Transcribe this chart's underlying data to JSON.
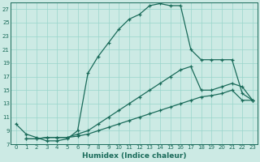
{
  "xlabel": "Humidex (Indice chaleur)",
  "background_color": "#cceae4",
  "grid_color": "#99d5cb",
  "line_color": "#1a6b5a",
  "xlim": [
    -0.5,
    23.5
  ],
  "ylim": [
    7,
    28
  ],
  "yticks": [
    7,
    9,
    11,
    13,
    15,
    17,
    19,
    21,
    23,
    25,
    27
  ],
  "xticks": [
    0,
    1,
    2,
    3,
    4,
    5,
    6,
    7,
    8,
    9,
    10,
    11,
    12,
    13,
    14,
    15,
    16,
    17,
    18,
    19,
    20,
    21,
    22,
    23
  ],
  "series1_x": [
    0,
    1,
    2,
    3,
    4,
    5,
    6,
    7,
    8,
    9,
    10,
    11,
    12,
    13,
    14,
    15,
    16,
    17,
    18,
    19,
    20,
    21,
    22,
    23
  ],
  "series1_y": [
    10.0,
    8.5,
    8.0,
    7.5,
    7.5,
    7.8,
    9.0,
    17.5,
    20.0,
    22.0,
    24.0,
    25.5,
    26.2,
    27.5,
    27.8,
    27.5,
    27.5,
    21.0,
    19.5,
    19.5,
    19.5,
    19.5,
    14.5,
    13.5
  ],
  "series2_x": [
    1,
    2,
    3,
    4,
    5,
    6,
    7,
    8,
    9,
    10,
    11,
    12,
    13,
    14,
    15,
    16,
    17,
    18,
    19,
    20,
    21,
    22,
    23
  ],
  "series2_y": [
    7.8,
    7.8,
    8.0,
    8.0,
    8.0,
    8.2,
    8.5,
    9.0,
    9.5,
    10.0,
    10.5,
    11.0,
    11.5,
    12.0,
    12.5,
    13.0,
    13.5,
    14.0,
    14.2,
    14.5,
    15.0,
    13.5,
    13.5
  ],
  "series3_x": [
    1,
    2,
    3,
    4,
    5,
    6,
    7,
    8,
    9,
    10,
    11,
    12,
    13,
    14,
    15,
    16,
    17,
    18,
    19,
    20,
    21,
    22,
    23
  ],
  "series3_y": [
    7.8,
    7.8,
    8.0,
    8.0,
    8.0,
    8.5,
    9.0,
    10.0,
    11.0,
    12.0,
    13.0,
    14.0,
    15.0,
    16.0,
    17.0,
    18.0,
    18.5,
    15.0,
    15.0,
    15.5,
    16.0,
    15.5,
    13.5
  ],
  "tick_fontsize": 5.0,
  "xlabel_fontsize": 6.5
}
